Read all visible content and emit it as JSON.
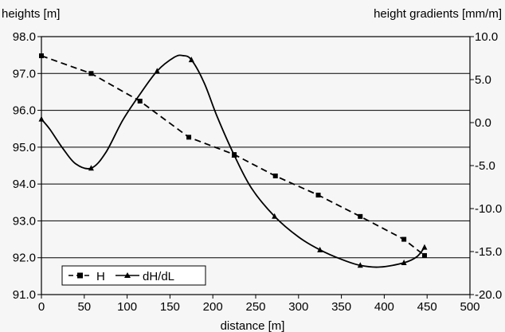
{
  "chart_data": {
    "type": "line",
    "title": "",
    "xlabel": "distance [m]",
    "ylabel_left": "heights [m]",
    "ylabel_right": "height gradients [mm/m]",
    "xlim": [
      0,
      500
    ],
    "ylim_left": [
      91.0,
      98.0
    ],
    "ylim_right": [
      -20.0,
      10.0
    ],
    "x_ticks": [
      "0",
      "50",
      "100",
      "150",
      "200",
      "250",
      "300",
      "350",
      "400",
      "450",
      "500"
    ],
    "y_left_ticks": [
      "91.0",
      "92.0",
      "93.0",
      "94.0",
      "95.0",
      "96.0",
      "97.0",
      "98.0"
    ],
    "y_right_ticks": [
      "-20.0",
      "-15.0",
      "-10.0",
      "-5.0",
      "0.0",
      "5.0",
      "10.0"
    ],
    "grid": "horizontal",
    "legend_position": "bottom-left",
    "series": [
      {
        "name": "H",
        "axis": "left",
        "style": "dashed",
        "marker": "square",
        "color": "#000000",
        "x": [
          0,
          58,
          115,
          172,
          225,
          273,
          323,
          372,
          423,
          447
        ],
        "y": [
          97.48,
          97.0,
          96.25,
          95.27,
          94.8,
          94.22,
          93.7,
          93.12,
          92.5,
          92.06
        ]
      },
      {
        "name": "dH/dL",
        "axis": "right",
        "style": "solid",
        "marker": "triangle",
        "color": "#000000",
        "x": [
          0,
          10,
          25,
          40,
          58,
          75,
          95,
          115,
          135,
          155,
          165,
          175,
          190,
          205,
          225,
          245,
          272,
          300,
          325,
          350,
          372,
          395,
          423,
          438,
          447
        ],
        "y": [
          0.4,
          -0.8,
          -3.0,
          -4.8,
          -5.3,
          -3.5,
          0.3,
          3.3,
          6.0,
          7.6,
          7.8,
          7.3,
          4.6,
          0.7,
          -3.8,
          -7.6,
          -10.9,
          -13.3,
          -14.8,
          -15.9,
          -16.6,
          -16.8,
          -16.3,
          -15.6,
          -14.5
        ]
      }
    ]
  }
}
